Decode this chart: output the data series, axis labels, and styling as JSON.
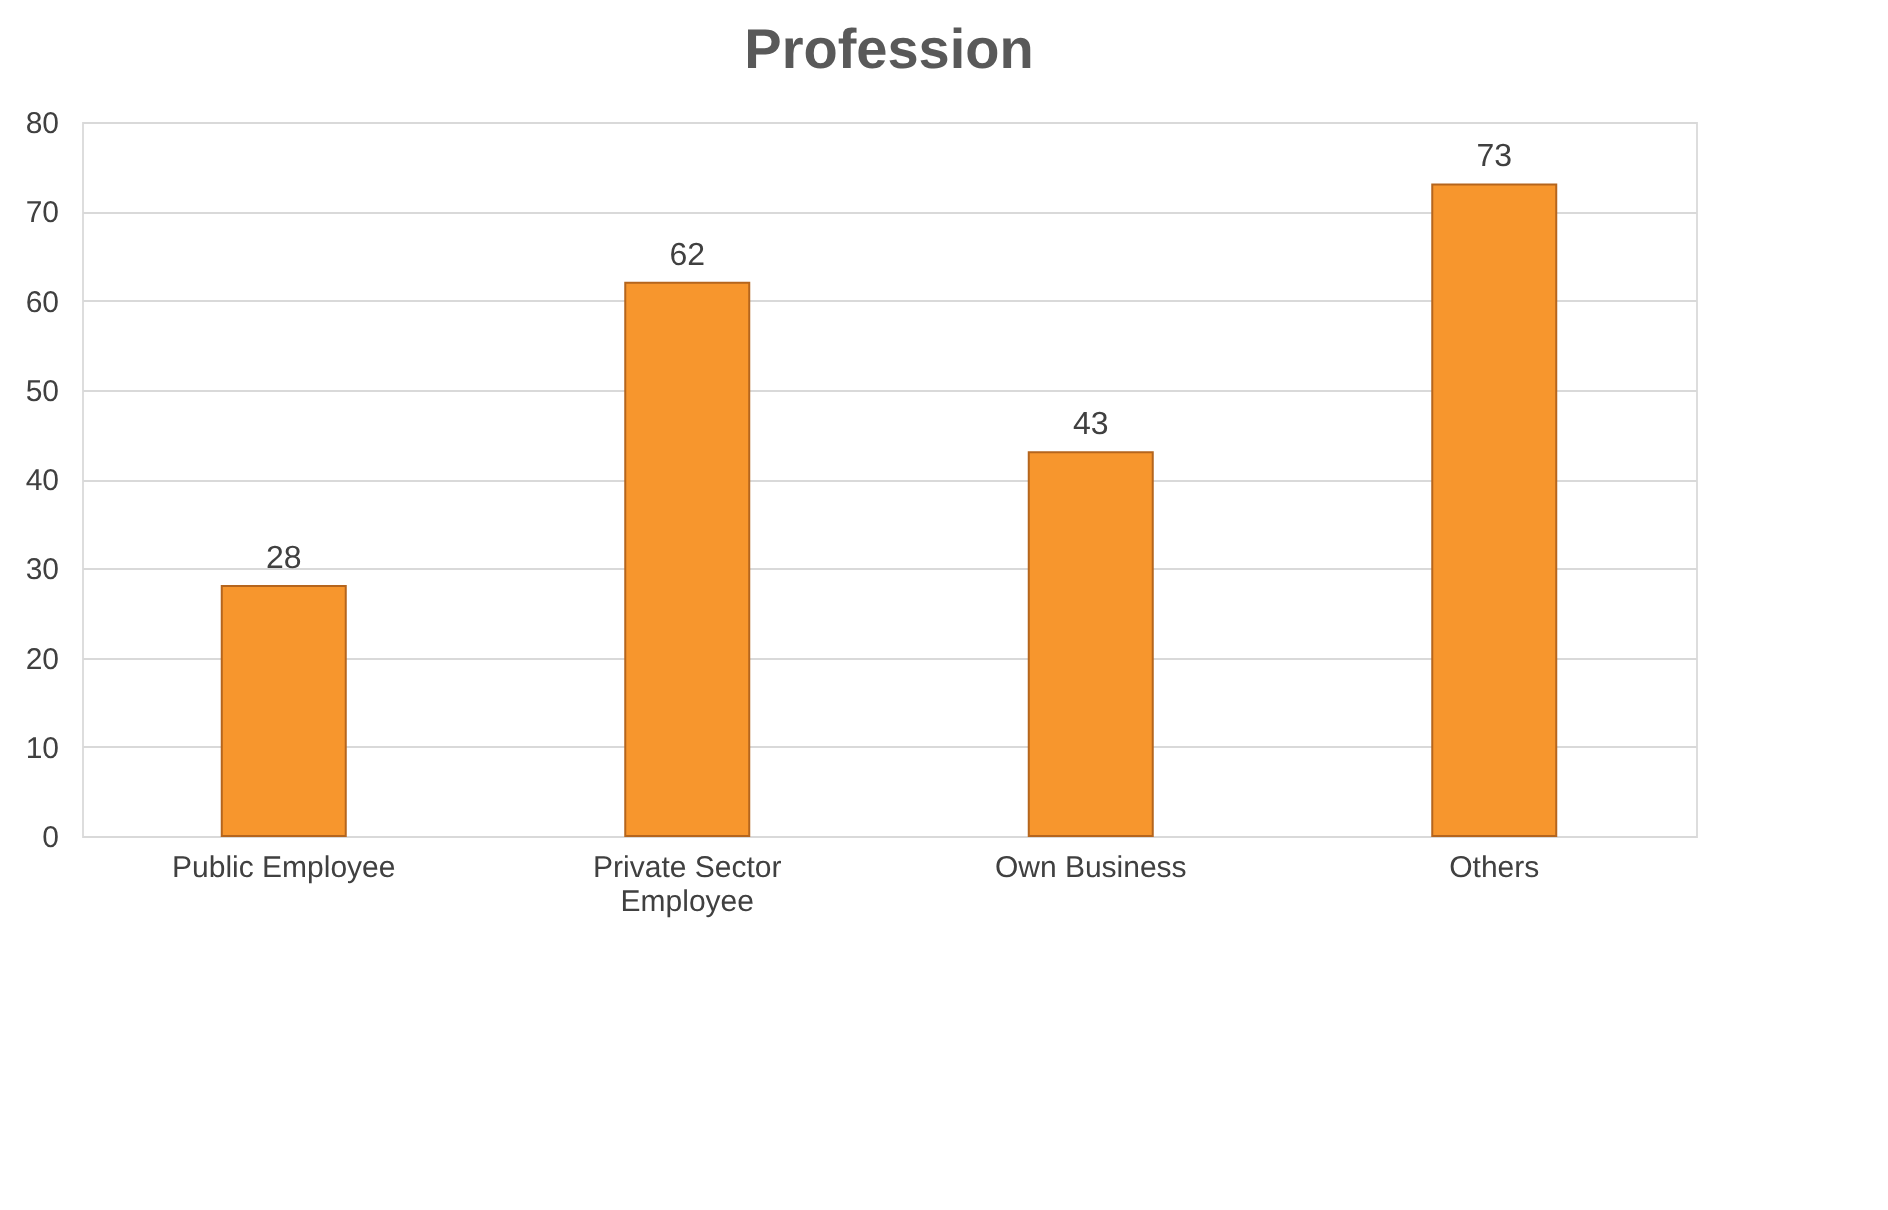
{
  "chart_data": {
    "type": "bar",
    "title": "Profession",
    "categories": [
      "Public Employee",
      "Private Sector Employee",
      "Own Business",
      "Others"
    ],
    "values": [
      28,
      62,
      43,
      73
    ],
    "color": "#f7962d",
    "ylim": [
      0,
      80
    ],
    "yticks": [
      0,
      10,
      20,
      30,
      40,
      50,
      60,
      70,
      80
    ],
    "grid": "y",
    "data_labels": true
  }
}
